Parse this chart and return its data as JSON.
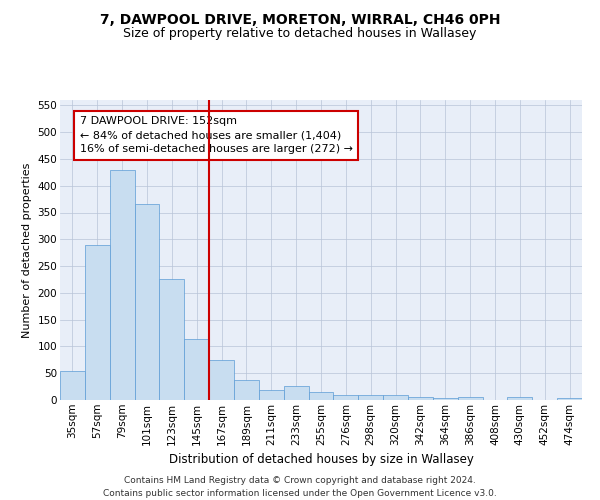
{
  "title": "7, DAWPOOL DRIVE, MORETON, WIRRAL, CH46 0PH",
  "subtitle": "Size of property relative to detached houses in Wallasey",
  "xlabel": "Distribution of detached houses by size in Wallasey",
  "ylabel": "Number of detached properties",
  "categories": [
    "35sqm",
    "57sqm",
    "79sqm",
    "101sqm",
    "123sqm",
    "145sqm",
    "167sqm",
    "189sqm",
    "211sqm",
    "233sqm",
    "255sqm",
    "276sqm",
    "298sqm",
    "320sqm",
    "342sqm",
    "364sqm",
    "386sqm",
    "408sqm",
    "430sqm",
    "452sqm",
    "474sqm"
  ],
  "values": [
    55,
    290,
    430,
    365,
    225,
    113,
    75,
    38,
    18,
    27,
    15,
    10,
    10,
    10,
    5,
    4,
    5,
    0,
    5,
    0,
    4
  ],
  "bar_color": "#c8ddf0",
  "bar_edge_color": "#5b9bd5",
  "vline_x": 5.5,
  "vline_color": "#cc0000",
  "annotation_text": "7 DAWPOOL DRIVE: 152sqm\n← 84% of detached houses are smaller (1,404)\n16% of semi-detached houses are larger (272) →",
  "annotation_box_color": "#ffffff",
  "annotation_box_edge": "#cc0000",
  "ylim": [
    0,
    560
  ],
  "yticks": [
    0,
    50,
    100,
    150,
    200,
    250,
    300,
    350,
    400,
    450,
    500,
    550
  ],
  "bg_color": "#e8eef8",
  "footer_text": "Contains HM Land Registry data © Crown copyright and database right 2024.\nContains public sector information licensed under the Open Government Licence v3.0.",
  "title_fontsize": 10,
  "subtitle_fontsize": 9,
  "xlabel_fontsize": 8.5,
  "ylabel_fontsize": 8,
  "tick_fontsize": 7.5,
  "annotation_fontsize": 8,
  "footer_fontsize": 6.5
}
